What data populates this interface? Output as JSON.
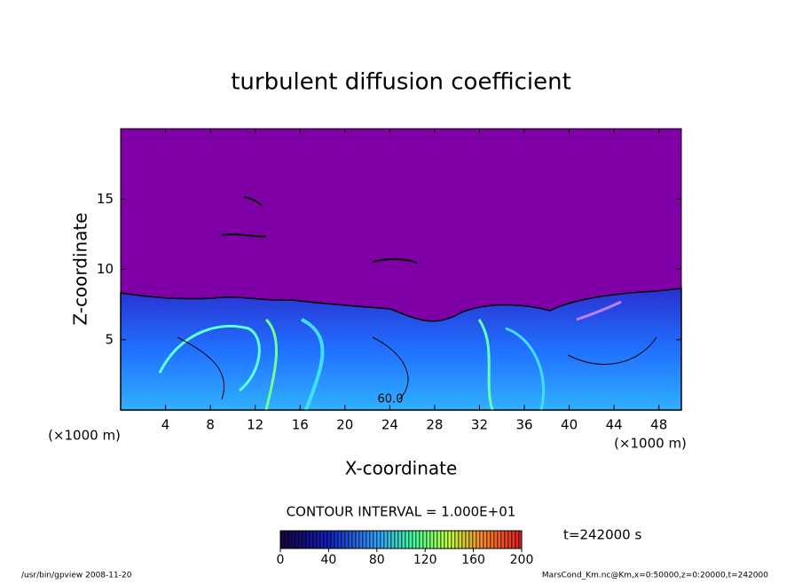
{
  "chart_data": {
    "type": "contour",
    "title": "turbulent diffusion coefficient",
    "x_label": "X-coordinate",
    "y_label": "Z-coordinate",
    "x_unit": "(×1000 m)",
    "y_unit": "(×1000 m)",
    "xlim": [
      0,
      50
    ],
    "xticks": [
      4,
      8,
      12,
      16,
      20,
      24,
      28,
      32,
      36,
      40,
      44,
      48
    ],
    "ylim": [
      0,
      20
    ],
    "yticks": [
      5,
      10,
      15
    ],
    "annotation": "60.0",
    "contour_interval": "CONTOUR INTERVAL = 1.000E+01",
    "colorbar": {
      "lim": [
        0,
        200
      ],
      "ticks": [
        0,
        40,
        80,
        120,
        160,
        200
      ]
    },
    "time_label": "t=242000 s",
    "footer_left": "/usr/bin/gpview   2008-11-20",
    "footer_right": "MarsCond_Km.nc@Km,x=0:50000,z=0:20000,t=242000"
  }
}
